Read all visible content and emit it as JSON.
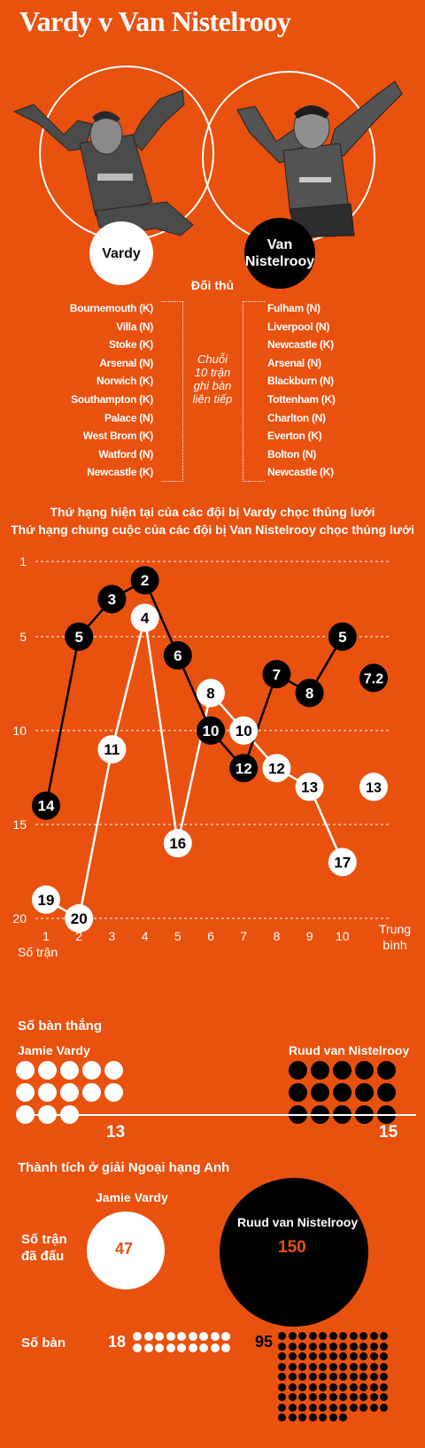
{
  "title": "Vardy v Van Nistelrooy",
  "players": {
    "vardy_label": "Vardy",
    "nistelrooy_label": "Van\nNistelrooy"
  },
  "opponents": {
    "heading": "Đối thủ",
    "streak_label": "Chuỗi\n10 trận\nghi bàn\nliên tiếp",
    "vardy": [
      "Bournemouth (K)",
      "Villa (N)",
      "Stoke (K)",
      "Arsenal (N)",
      "Norwich (K)",
      "Southampton (K)",
      "Palace (N)",
      "West Brom (K)",
      "Watford (N)",
      "Newcastle (K)"
    ],
    "nistelrooy": [
      "Fulham (N)",
      "Liverpool (N)",
      "Newcastle (K)",
      "Arsenal (N)",
      "Blackburn (N)",
      "Tottenham (K)",
      "Charlton (N)",
      "Everton (K)",
      "Bolton (N)",
      "Newcastle (K)"
    ]
  },
  "chart_data": {
    "type": "line",
    "title": "Thứ hạng hiện tại của các đội bị Vardy chọc thủng lưới",
    "subtitle": "Thứ hạng chung cuộc của các đội bị Van Nistelrooy chọc thủng lưới",
    "xlabel": "Số trận",
    "categories": [
      "1",
      "2",
      "3",
      "4",
      "5",
      "6",
      "7",
      "8",
      "9",
      "10"
    ],
    "average_label": "Trung bình",
    "y_ticks": [
      1,
      5,
      10,
      15,
      20
    ],
    "ylim": [
      1,
      20
    ],
    "y_reversed": true,
    "grid": "dashed",
    "series": [
      {
        "name": "Vardy",
        "color": "#000000",
        "values": [
          14,
          5,
          3,
          2,
          6,
          10,
          12,
          7,
          8,
          5
        ],
        "average": 7.2,
        "average_label": "7.2"
      },
      {
        "name": "Van Nistelrooy",
        "color": "#ffffff",
        "values": [
          19,
          20,
          11,
          4,
          16,
          8,
          10,
          12,
          13,
          17
        ],
        "average": 13,
        "average_label": "13"
      }
    ]
  },
  "goals": {
    "heading": "Số bàn thắng",
    "vardy_name": "Jamie Vardy",
    "nistelrooy_name": "Ruud van Nistelrooy",
    "vardy_count": 13,
    "nistelrooy_count": 15,
    "vardy_total": "13",
    "nistelrooy_total": "15"
  },
  "premier": {
    "heading": "Thành tích ở giải Ngoại hạng Anh",
    "vardy_name": "Jamie Vardy",
    "nistelrooy_name": "Ruud van Nistelrooy",
    "matches_label": "Số trận\nđã đấu",
    "goals_label": "Số bàn",
    "vardy_matches": "47",
    "nistelrooy_matches": "150",
    "vardy_goals": "18",
    "nistelrooy_goals": "95",
    "vardy_goal_dots": 18,
    "nistelrooy_goal_dots": 95
  },
  "colors": {
    "background": "#e9510f",
    "vardy": "#ffffff",
    "nistelrooy": "#000000",
    "accent_text": "#e9510f"
  }
}
